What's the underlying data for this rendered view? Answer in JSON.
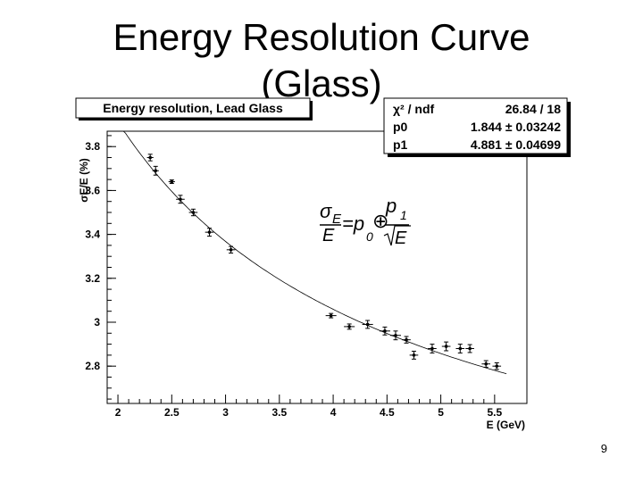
{
  "slide": {
    "title_line1": "Energy Resolution Curve",
    "title_line2": "(Glass)",
    "page_number": "9"
  },
  "chart_data": {
    "type": "scatter",
    "title": "Energy resolution, Lead Glass",
    "xlabel": "E (GeV)",
    "ylabel": "σE/E (%)",
    "xlim": [
      1.9,
      5.8
    ],
    "ylim": [
      2.63,
      3.87
    ],
    "xticks": [
      "2",
      "2.5",
      "3",
      "3.5",
      "4",
      "4.5",
      "5",
      "5.5"
    ],
    "yticks": [
      "2.8",
      "3",
      "3.2",
      "3.4",
      "3.6",
      "3.8"
    ],
    "formula": {
      "sigma": "σ",
      "sub_e": "E",
      "eq": "=p",
      "sub0": "0",
      "oplus": "⊕",
      "num": "p",
      "sub1": "1",
      "den": "E",
      "denom_left": "E"
    },
    "fit": {
      "chi2_label": "χ² / ndf",
      "chi2_value": "26.84 / 18",
      "p0_label": "p0",
      "p0_value": "1.844 ± 0.03242",
      "p1_label": "p1",
      "p1_value": "4.881 ± 0.04699",
      "p0": 1.844,
      "p1": 4.881
    },
    "series": [
      {
        "x": [
          2.3,
          2.35,
          2.5,
          2.58,
          2.7,
          2.85,
          3.05,
          3.98,
          4.15,
          4.32,
          4.48,
          4.58,
          4.68,
          4.75,
          4.92,
          5.05,
          5.18,
          5.27,
          5.42,
          5.52
        ],
        "y": [
          3.75,
          3.69,
          3.64,
          3.56,
          3.5,
          3.41,
          3.33,
          3.03,
          2.98,
          2.99,
          2.96,
          2.94,
          2.92,
          2.85,
          2.88,
          2.89,
          2.88,
          2.88,
          2.81,
          2.8
        ],
        "err": [
          0.015,
          0.02,
          0.008,
          0.018,
          0.015,
          0.018,
          0.015,
          0.01,
          0.012,
          0.018,
          0.018,
          0.02,
          0.015,
          0.018,
          0.02,
          0.02,
          0.02,
          0.018,
          0.015,
          0.015
        ],
        "xerr": [
          0.03,
          0.03,
          0.03,
          0.04,
          0.04,
          0.04,
          0.04,
          0.05,
          0.05,
          0.05,
          0.05,
          0.05,
          0.04,
          0.04,
          0.04,
          0.04,
          0.04,
          0.04,
          0.04,
          0.04
        ]
      }
    ]
  }
}
